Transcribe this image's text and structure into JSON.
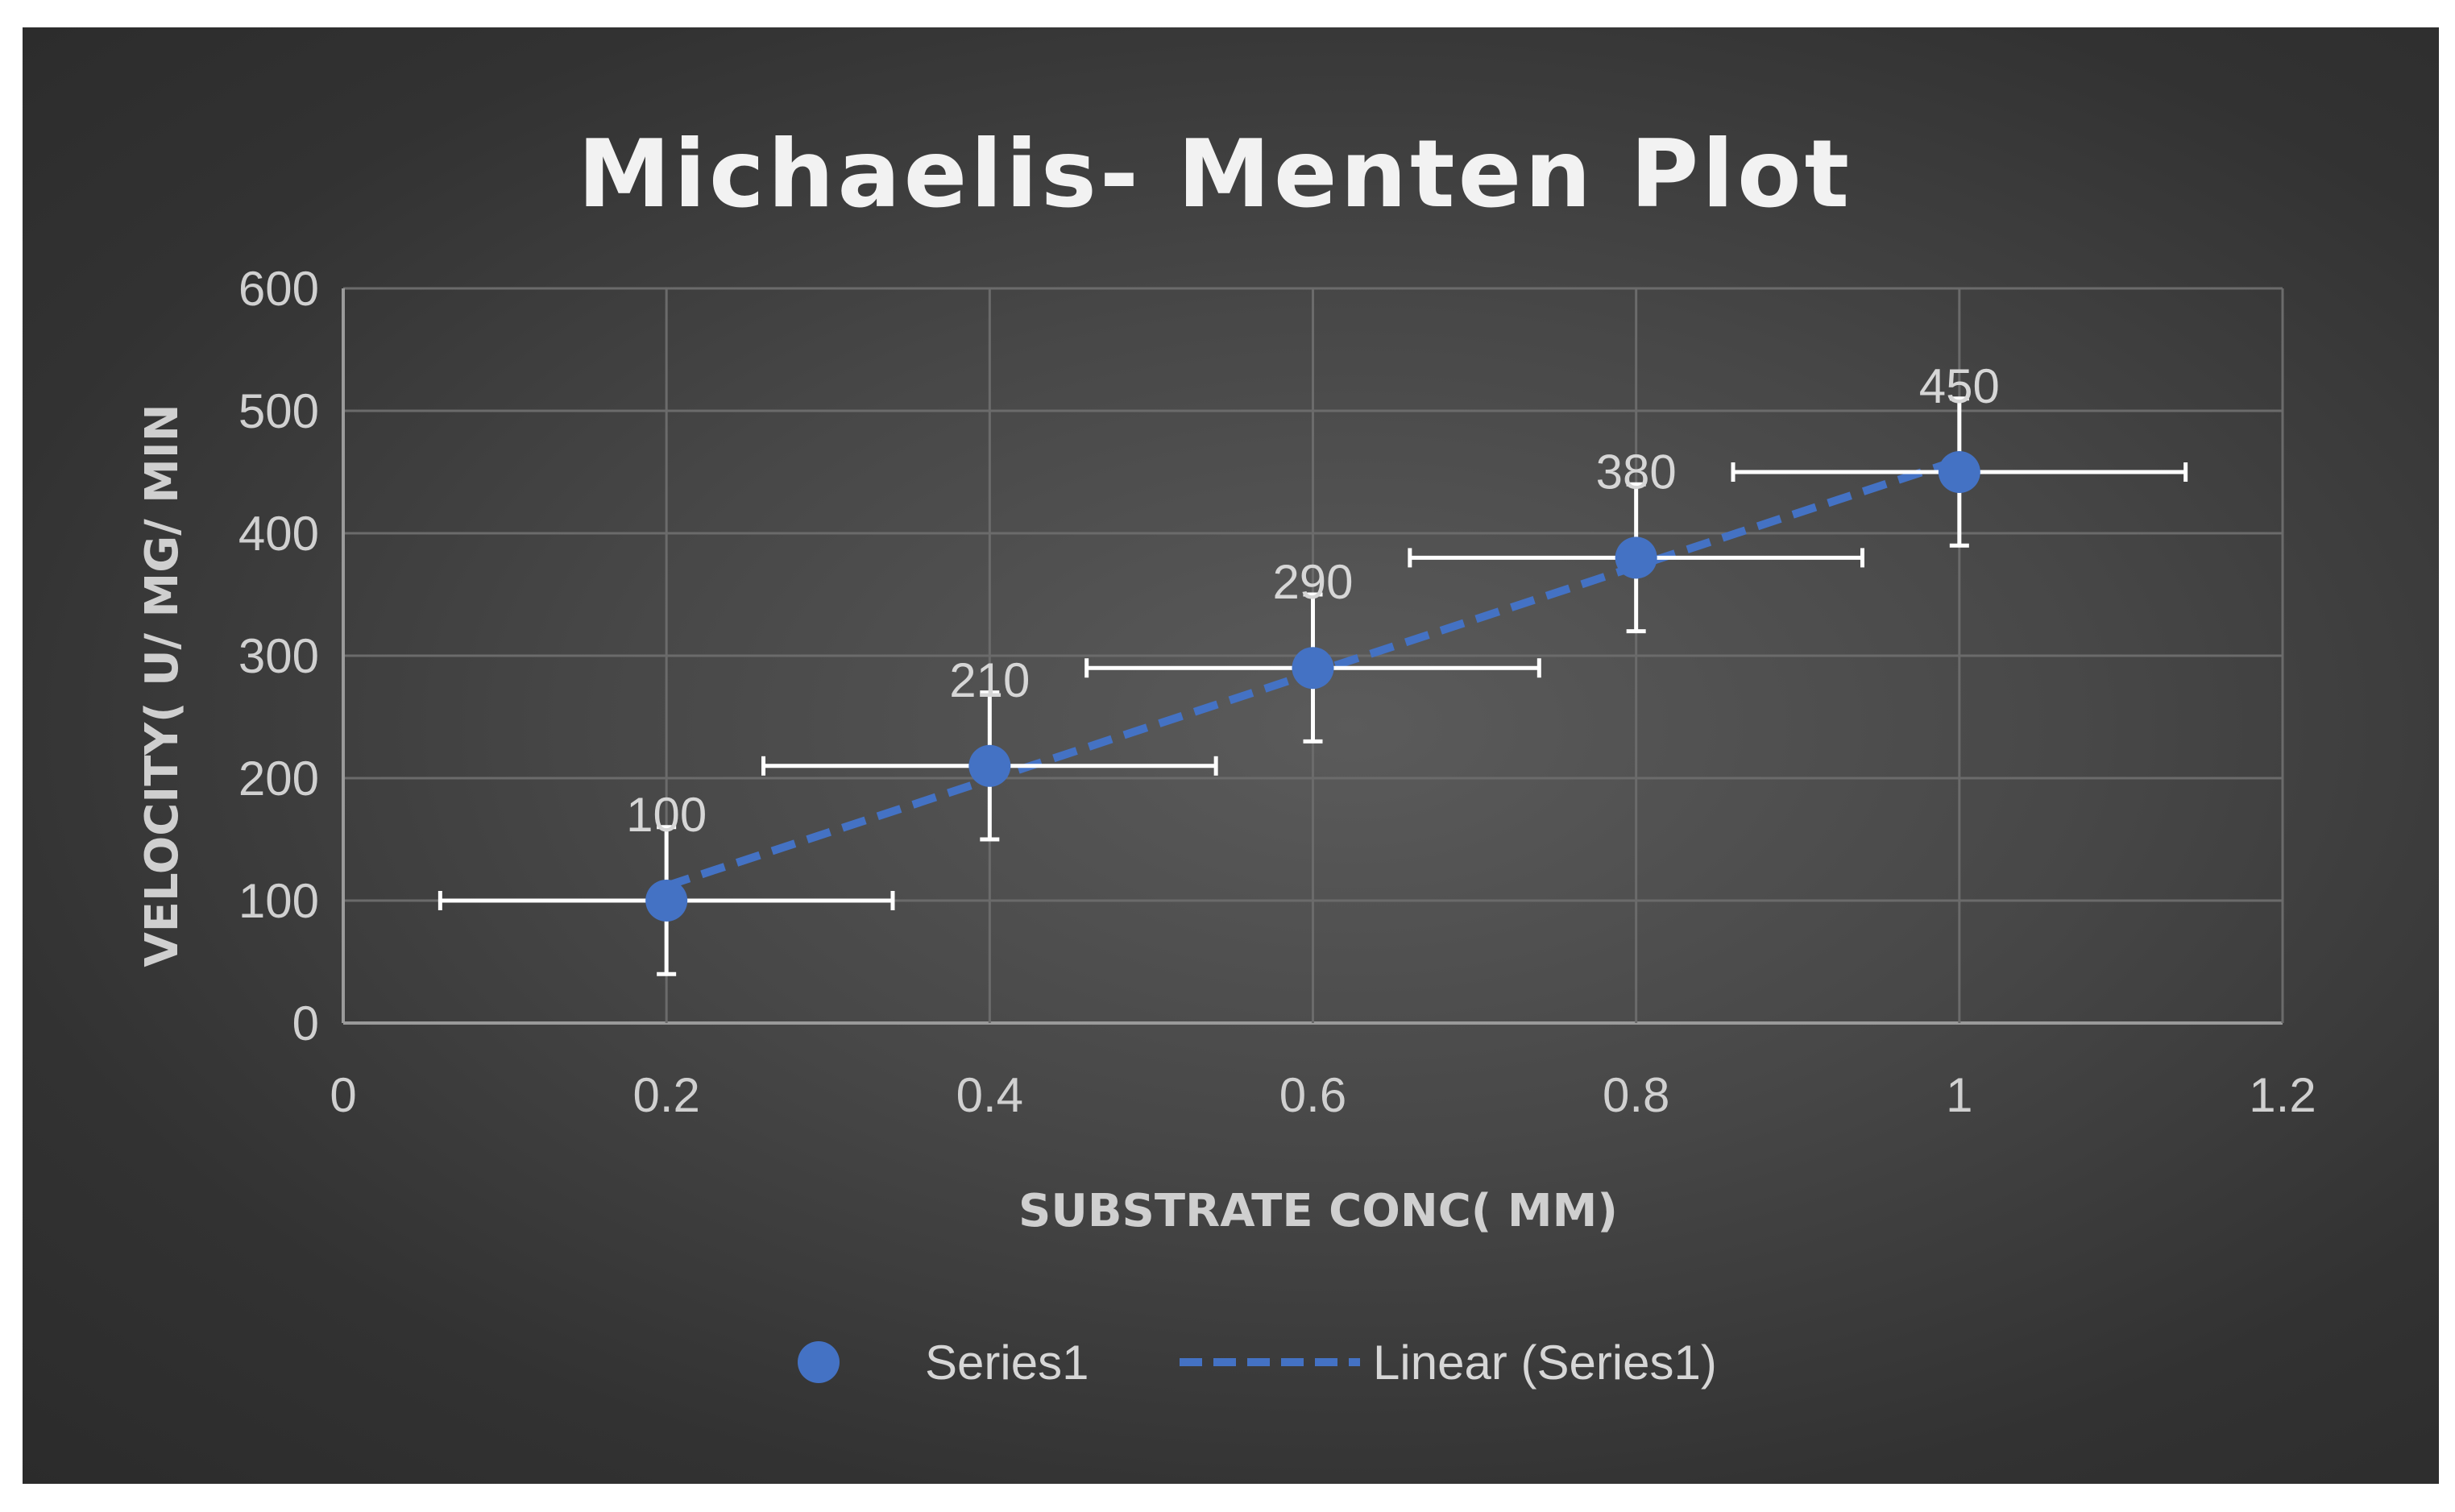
{
  "chart_data": {
    "type": "scatter",
    "title": "Michaelis- Menten Plot",
    "xlabel": "SUBSTRATE CONC( MM)",
    "ylabel": "VELOCITY( U/ MG/ MIN",
    "xlim": [
      0,
      1.2
    ],
    "ylim": [
      0,
      600
    ],
    "x_ticks": [
      "0",
      "0.2",
      "0.4",
      "0.6",
      "0.8",
      "1",
      "1.2"
    ],
    "y_ticks": [
      "0",
      "100",
      "200",
      "300",
      "400",
      "500",
      "600"
    ],
    "grid": true,
    "legend_position": "bottom",
    "series": [
      {
        "name": "Series1",
        "color": "#4472c4",
        "marker": "circle",
        "x": [
          0.2,
          0.4,
          0.6,
          0.8,
          1
        ],
        "y": [
          100,
          210,
          290,
          380,
          450
        ],
        "data_labels": [
          "100",
          "210",
          "290",
          "380",
          "450"
        ],
        "x_error": 0.14,
        "y_error": 60
      }
    ],
    "trendline": {
      "name": "Linear (Series1)",
      "type": "linear",
      "style": "dashed",
      "color": "#4472c4"
    }
  }
}
